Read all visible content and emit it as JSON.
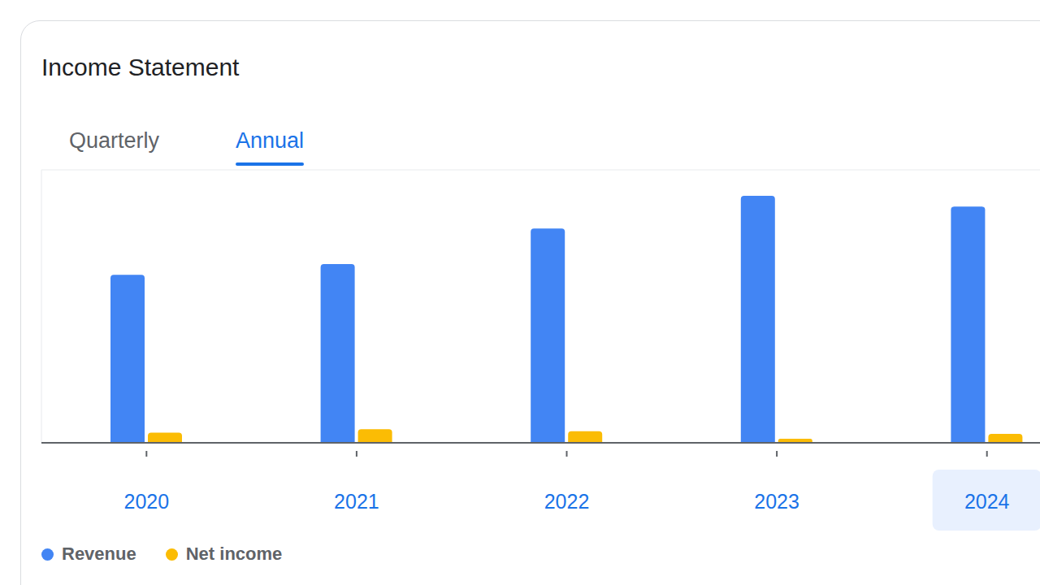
{
  "chart_data": {
    "type": "bar",
    "title": "Income Statement",
    "tabs": [
      "Quarterly",
      "Annual"
    ],
    "selected_tab": "Annual",
    "categories": [
      "2020",
      "2021",
      "2022",
      "2023",
      "2024"
    ],
    "series": [
      {
        "name": "Revenue",
        "color": "#4285f4",
        "values": [
          24.6,
          26.2,
          31.4,
          36.2,
          34.6
        ]
      },
      {
        "name": "Net income",
        "color": "#fbbc04",
        "values": [
          1.5,
          2.0,
          1.7,
          0.6,
          1.3
        ]
      }
    ],
    "ylim": [
      0,
      40
    ],
    "yticks": [
      0,
      10,
      20,
      30
    ],
    "grid": true,
    "legend": "bottom-left",
    "tick_labels": "x"
  }
}
